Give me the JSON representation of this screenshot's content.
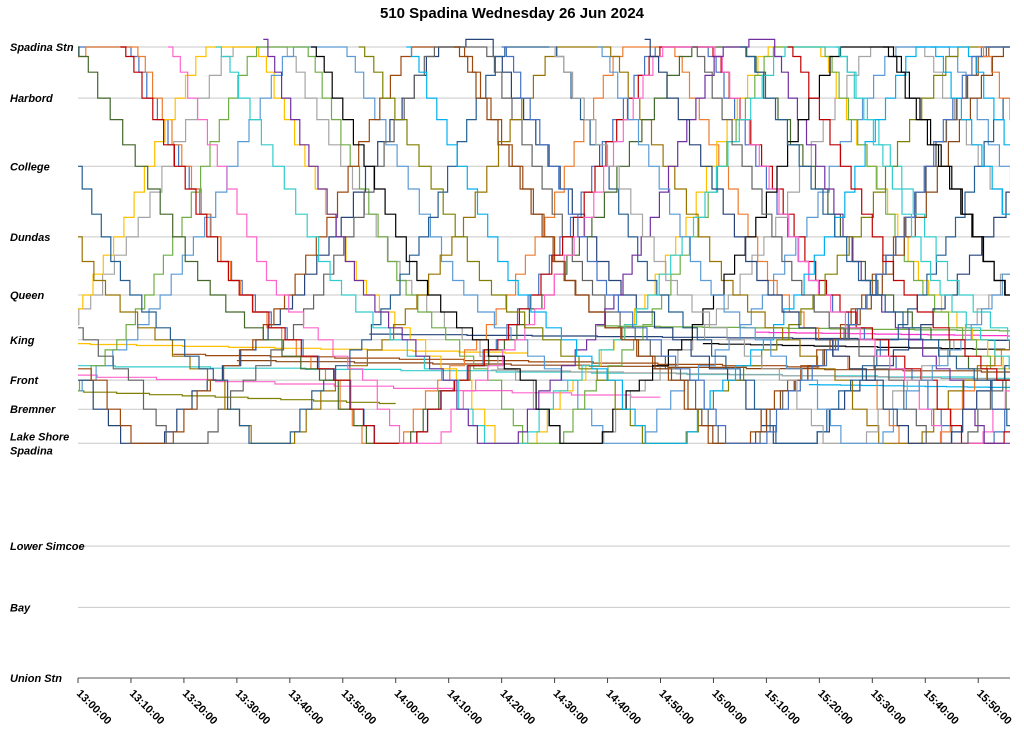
{
  "title": "510 Spadina Wednesday 26 Jun 2024",
  "chart_data": {
    "type": "line",
    "title": "510 Spadina Wednesday 26 Jun 2024",
    "xlabel": "",
    "ylabel": "",
    "grid": true,
    "legend": "none",
    "x_range_minutes": [
      0,
      176
    ],
    "x_tick_labels": [
      "13:00:00",
      "13:10:00",
      "13:20:00",
      "13:30:00",
      "13:40:00",
      "13:50:00",
      "14:00:00",
      "14:10:00",
      "14:20:00",
      "14:30:00",
      "14:40:00",
      "14:50:00",
      "15:00:00",
      "15:10:00",
      "15:20:00",
      "15:30:00",
      "15:40:00",
      "15:50:00"
    ],
    "stations": [
      {
        "name": "Spadina Stn",
        "label_lines": [
          "Spadina Stn"
        ],
        "pos": 0.0
      },
      {
        "name": "Harbord",
        "label_lines": [
          "Harbord"
        ],
        "pos": 0.081
      },
      {
        "name": "College",
        "label_lines": [
          "College"
        ],
        "pos": 0.189
      },
      {
        "name": "Dundas",
        "label_lines": [
          "Dundas"
        ],
        "pos": 0.301
      },
      {
        "name": "Queen",
        "label_lines": [
          "Queen"
        ],
        "pos": 0.393
      },
      {
        "name": "King",
        "label_lines": [
          "King"
        ],
        "pos": 0.464
      },
      {
        "name": "Front",
        "label_lines": [
          "Front"
        ],
        "pos": 0.528
      },
      {
        "name": "Bremner",
        "label_lines": [
          "Bremner"
        ],
        "pos": 0.574
      },
      {
        "name": "Lake Shore Spadina",
        "label_lines": [
          "Lake Shore",
          "Spadina"
        ],
        "pos": 0.628
      },
      {
        "name": "Lower Simcoe",
        "label_lines": [
          "Lower Simcoe"
        ],
        "pos": 0.791
      },
      {
        "name": "Bay",
        "label_lines": [
          "Bay"
        ],
        "pos": 0.888
      },
      {
        "name": "Union Stn",
        "label_lines": [
          "Union Stn"
        ],
        "pos": 1.0
      }
    ],
    "palette": [
      "#4472C4",
      "#ED7D31",
      "#A5A5A5",
      "#FFC000",
      "#5B9BD5",
      "#70AD47",
      "#264478",
      "#9E480E",
      "#636363",
      "#997300",
      "#255E91",
      "#43682B",
      "#C00000",
      "#FF66CC",
      "#33CCCC",
      "#7030A0",
      "#000000",
      "#808000",
      "#00B0F0",
      "#8B4513"
    ],
    "profiles": {
      "south": [
        [
          0,
          0
        ],
        [
          2,
          0.015
        ],
        [
          3,
          0.04
        ],
        [
          5,
          0.081
        ],
        [
          7,
          0.115
        ],
        [
          9,
          0.155
        ],
        [
          11,
          0.189
        ],
        [
          13,
          0.225
        ],
        [
          15,
          0.265
        ],
        [
          17,
          0.301
        ],
        [
          19,
          0.34
        ],
        [
          21,
          0.37
        ],
        [
          23,
          0.393
        ],
        [
          26,
          0.42
        ],
        [
          29,
          0.445
        ],
        [
          32,
          0.464
        ],
        [
          35,
          0.49
        ],
        [
          38,
          0.51
        ],
        [
          41,
          0.528
        ],
        [
          44,
          0.574
        ],
        [
          46,
          0.6
        ],
        [
          48,
          0.628
        ]
      ],
      "north": [
        [
          0,
          0.628
        ],
        [
          2,
          0.61
        ],
        [
          4,
          0.574
        ],
        [
          7,
          0.545
        ],
        [
          9,
          0.528
        ],
        [
          12,
          0.505
        ],
        [
          15,
          0.48
        ],
        [
          17,
          0.464
        ],
        [
          19,
          0.44
        ],
        [
          21,
          0.415
        ],
        [
          23,
          0.393
        ],
        [
          25,
          0.36
        ],
        [
          27,
          0.33
        ],
        [
          29,
          0.301
        ],
        [
          31,
          0.27
        ],
        [
          33,
          0.23
        ],
        [
          35,
          0.189
        ],
        [
          37,
          0.15
        ],
        [
          39,
          0.115
        ],
        [
          41,
          0.081
        ],
        [
          43,
          0.045
        ],
        [
          45,
          0.015
        ],
        [
          47,
          0
        ]
      ],
      "dwell_south": 6,
      "dwell_north": 8
    },
    "runs": [
      {
        "s": -100,
        "v": 1.0,
        "c": 0
      },
      {
        "s": -91,
        "v": 0.92,
        "c": 1
      },
      {
        "s": -82,
        "v": 1.12,
        "c": 2
      },
      {
        "s": -73,
        "v": 0.97,
        "c": 3
      },
      {
        "s": -64,
        "v": 1.05,
        "c": 4
      },
      {
        "s": -55,
        "v": 0.88,
        "c": 5
      },
      {
        "s": -46,
        "v": 1.15,
        "c": 6,
        "o": true
      },
      {
        "s": -37,
        "v": 1.0,
        "c": 7
      },
      {
        "s": -28,
        "v": 0.95,
        "c": 8
      },
      {
        "s": -19,
        "v": 1.1,
        "c": 9
      },
      {
        "s": -10,
        "v": 0.9,
        "c": 10
      },
      {
        "s": -1,
        "v": 1.18,
        "c": 11
      },
      {
        "s": 8,
        "v": 1.02,
        "c": 12
      },
      {
        "s": 17,
        "v": 0.93,
        "c": 13
      },
      {
        "s": 26,
        "v": 1.08,
        "c": 14
      },
      {
        "s": 35,
        "v": 0.86,
        "c": 15,
        "o": true
      },
      {
        "s": 44,
        "v": 1.0,
        "c": 16
      },
      {
        "s": 53,
        "v": 1.14,
        "c": 17
      },
      {
        "s": 62,
        "v": 0.96,
        "c": 18
      },
      {
        "s": 71,
        "v": 1.04,
        "c": 19
      },
      {
        "s": 80,
        "v": 0.9,
        "c": 0
      },
      {
        "s": 89,
        "v": 1.1,
        "c": 2
      },
      {
        "s": 98,
        "v": 0.98,
        "c": 4
      },
      {
        "s": 107,
        "v": 1.06,
        "c": 6,
        "o": true
      },
      {
        "s": 116,
        "v": 0.94,
        "c": 8
      },
      {
        "s": 125,
        "v": 1.12,
        "c": 10
      },
      {
        "s": 134,
        "v": 1.0,
        "c": 12
      },
      {
        "s": 143,
        "v": 0.9,
        "c": 14
      },
      {
        "s": 152,
        "v": 1.05,
        "c": 16
      },
      {
        "s": 161,
        "v": 0.97,
        "c": 18
      },
      {
        "s": 170,
        "v": 1.0,
        "c": 1
      }
    ],
    "holds": [
      {
        "c": "#33CCCC",
        "t0": -2,
        "t1": 178,
        "p": 0.505,
        "d": 0.02
      },
      {
        "c": "#FFC000",
        "t0": -2,
        "t1": 85,
        "p": 0.47,
        "d": 0.015
      },
      {
        "c": "#264478",
        "t0": 55,
        "t1": 178,
        "p": 0.455,
        "d": 0.01
      },
      {
        "c": "#FF66CC",
        "t0": -2,
        "t1": 110,
        "p": 0.52,
        "d": 0.035
      },
      {
        "c": "#9E480E",
        "t0": 18,
        "t1": 140,
        "p": 0.487,
        "d": 0.02
      },
      {
        "c": "#A5A5A5",
        "t0": 78,
        "t1": 178,
        "p": 0.512,
        "d": 0.015
      },
      {
        "c": "#70AD47",
        "t0": 98,
        "t1": 178,
        "p": 0.442,
        "d": 0.008
      },
      {
        "c": "#000000",
        "t0": 118,
        "t1": 178,
        "p": 0.47,
        "d": 0.01
      },
      {
        "c": "#FF33CC",
        "t0": 128,
        "t1": 178,
        "p": 0.452,
        "d": 0.006
      },
      {
        "c": "#00B0F0",
        "t0": 138,
        "t1": 178,
        "p": 0.535,
        "d": 0.005
      },
      {
        "c": "#808000",
        "t0": -2,
        "t1": 60,
        "p": 0.545,
        "d": 0.02
      },
      {
        "c": "#8B4513",
        "t0": 30,
        "t1": 178,
        "p": 0.497,
        "d": 0.018
      }
    ],
    "axis_colors": {
      "gridline": "#c9c9c9",
      "axis_line": "#595959",
      "tick": "#404040",
      "label": "#000000"
    }
  }
}
